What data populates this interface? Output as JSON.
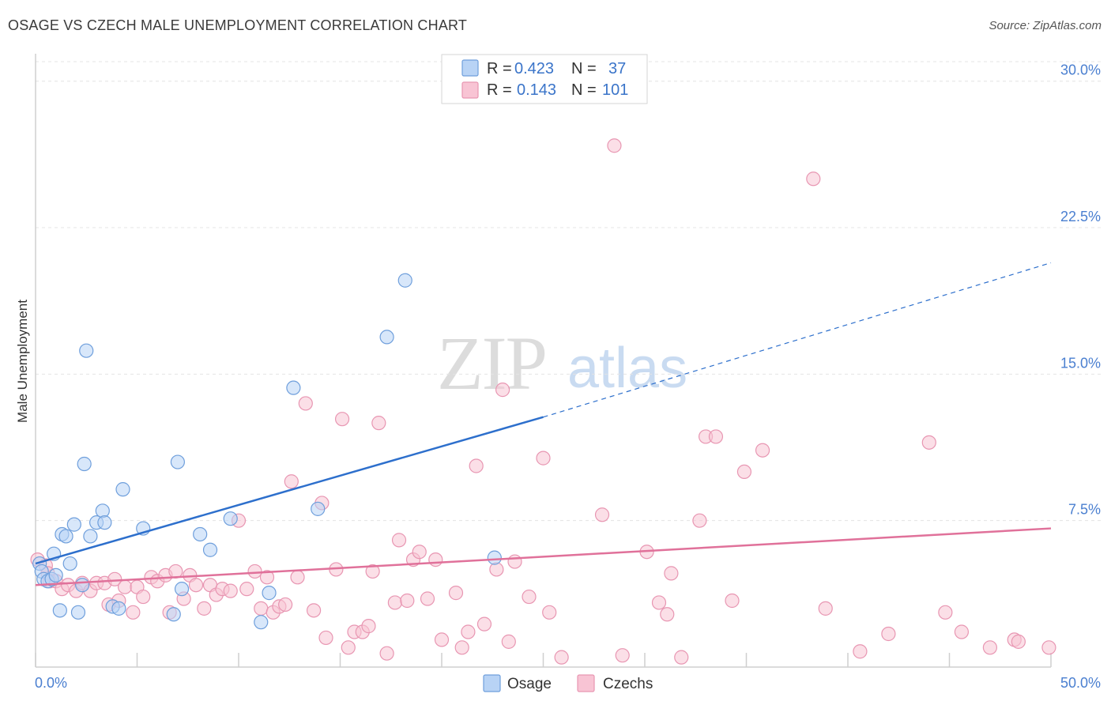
{
  "header": {
    "title": "OSAGE VS CZECH MALE UNEMPLOYMENT CORRELATION CHART",
    "source": "Source: ZipAtlas.com"
  },
  "watermark": {
    "part1": "ZIP",
    "part2": "atlas"
  },
  "legend": {
    "rows": [
      {
        "r_label": "R =",
        "r_value": "0.423",
        "n_label": "N =",
        "n_value": "37"
      },
      {
        "r_label": "R =",
        "r_value": "0.143",
        "n_label": "N =",
        "n_value": "101"
      }
    ]
  },
  "bottom_legend": {
    "osage": "Osage",
    "czechs": "Czechs"
  },
  "chart_data": {
    "type": "scatter",
    "title": "OSAGE VS CZECH MALE UNEMPLOYMENT CORRELATION CHART",
    "xlabel": "",
    "ylabel": "Male Unemployment",
    "xlim": [
      0,
      50
    ],
    "ylim": [
      0,
      31
    ],
    "x_tick_labels": [
      "0.0%",
      "50.0%"
    ],
    "y_ticks": [
      7.5,
      15.0,
      22.5,
      30.0
    ],
    "y_tick_labels": [
      "7.5%",
      "15.0%",
      "22.5%",
      "30.0%"
    ],
    "colors": {
      "osage_fill": "#b8d3f5",
      "osage_stroke": "#6f9fdc",
      "osage_line": "#2d6fcc",
      "czech_fill": "#f8c4d4",
      "czech_stroke": "#e896b2",
      "czech_line": "#e0719a"
    },
    "series": [
      {
        "name": "Osage",
        "R": 0.423,
        "N": 37,
        "trend": {
          "x": [
            0,
            25,
            50
          ],
          "y": [
            5.3,
            12.8,
            20.7
          ],
          "solid_until": 25
        },
        "points": [
          [
            0.2,
            5.3
          ],
          [
            0.3,
            4.9
          ],
          [
            0.4,
            4.5
          ],
          [
            0.6,
            4.4
          ],
          [
            0.8,
            4.5
          ],
          [
            0.9,
            5.8
          ],
          [
            1.0,
            4.7
          ],
          [
            1.2,
            2.9
          ],
          [
            1.3,
            6.8
          ],
          [
            1.5,
            6.7
          ],
          [
            1.7,
            5.3
          ],
          [
            1.9,
            7.3
          ],
          [
            2.1,
            2.8
          ],
          [
            2.3,
            4.2
          ],
          [
            2.4,
            10.4
          ],
          [
            2.5,
            16.2
          ],
          [
            2.7,
            6.7
          ],
          [
            3.0,
            7.4
          ],
          [
            3.3,
            8.0
          ],
          [
            3.4,
            7.4
          ],
          [
            3.8,
            3.1
          ],
          [
            4.1,
            3.0
          ],
          [
            4.3,
            9.1
          ],
          [
            5.3,
            7.1
          ],
          [
            6.8,
            2.7
          ],
          [
            7.0,
            10.5
          ],
          [
            7.2,
            4.0
          ],
          [
            8.1,
            6.8
          ],
          [
            8.6,
            6.0
          ],
          [
            9.6,
            7.6
          ],
          [
            11.1,
            2.3
          ],
          [
            11.5,
            3.8
          ],
          [
            12.7,
            14.3
          ],
          [
            13.9,
            8.1
          ],
          [
            17.3,
            16.9
          ],
          [
            18.2,
            19.8
          ],
          [
            22.6,
            5.6
          ]
        ]
      },
      {
        "name": "Czechs",
        "R": 0.143,
        "N": 101,
        "trend": {
          "x": [
            0,
            50
          ],
          "y": [
            4.2,
            7.1
          ]
        },
        "points": [
          [
            0.1,
            5.5
          ],
          [
            0.5,
            5.2
          ],
          [
            0.6,
            4.8
          ],
          [
            0.7,
            4.4
          ],
          [
            1.0,
            4.4
          ],
          [
            1.3,
            4.0
          ],
          [
            1.6,
            4.2
          ],
          [
            2.0,
            3.9
          ],
          [
            2.3,
            4.3
          ],
          [
            2.7,
            3.9
          ],
          [
            3.0,
            4.3
          ],
          [
            3.4,
            4.3
          ],
          [
            3.6,
            3.2
          ],
          [
            3.9,
            4.5
          ],
          [
            4.1,
            3.4
          ],
          [
            4.4,
            4.1
          ],
          [
            4.8,
            2.8
          ],
          [
            5.0,
            4.1
          ],
          [
            5.3,
            3.6
          ],
          [
            5.7,
            4.6
          ],
          [
            6.0,
            4.4
          ],
          [
            6.4,
            4.7
          ],
          [
            6.6,
            2.8
          ],
          [
            6.9,
            4.9
          ],
          [
            7.3,
            3.5
          ],
          [
            7.6,
            4.7
          ],
          [
            7.9,
            4.2
          ],
          [
            8.3,
            3.0
          ],
          [
            8.6,
            4.2
          ],
          [
            8.9,
            3.7
          ],
          [
            9.2,
            4.0
          ],
          [
            9.6,
            3.9
          ],
          [
            10.0,
            7.5
          ],
          [
            10.4,
            4.0
          ],
          [
            10.8,
            4.9
          ],
          [
            11.1,
            3.0
          ],
          [
            11.4,
            4.6
          ],
          [
            11.7,
            2.8
          ],
          [
            12.0,
            3.1
          ],
          [
            12.3,
            3.2
          ],
          [
            12.6,
            9.5
          ],
          [
            12.9,
            4.6
          ],
          [
            13.3,
            13.5
          ],
          [
            13.7,
            2.9
          ],
          [
            14.1,
            8.4
          ],
          [
            14.3,
            1.5
          ],
          [
            14.8,
            5.0
          ],
          [
            15.1,
            12.7
          ],
          [
            15.4,
            1.0
          ],
          [
            15.7,
            1.8
          ],
          [
            16.1,
            1.8
          ],
          [
            16.4,
            2.1
          ],
          [
            16.6,
            4.9
          ],
          [
            16.9,
            12.5
          ],
          [
            17.3,
            0.7
          ],
          [
            17.7,
            3.3
          ],
          [
            17.9,
            6.5
          ],
          [
            18.3,
            3.4
          ],
          [
            18.6,
            5.5
          ],
          [
            18.9,
            5.9
          ],
          [
            19.3,
            3.5
          ],
          [
            19.7,
            5.5
          ],
          [
            20.0,
            1.4
          ],
          [
            20.7,
            3.8
          ],
          [
            21.0,
            1.0
          ],
          [
            21.3,
            1.8
          ],
          [
            21.7,
            10.3
          ],
          [
            22.1,
            2.2
          ],
          [
            22.7,
            5.0
          ],
          [
            23.0,
            14.2
          ],
          [
            23.3,
            1.3
          ],
          [
            23.6,
            5.4
          ],
          [
            24.3,
            3.6
          ],
          [
            25.0,
            10.7
          ],
          [
            25.3,
            2.8
          ],
          [
            25.9,
            0.5
          ],
          [
            27.9,
            7.8
          ],
          [
            28.5,
            26.7
          ],
          [
            28.9,
            0.6
          ],
          [
            30.1,
            5.9
          ],
          [
            30.7,
            3.3
          ],
          [
            31.1,
            2.7
          ],
          [
            31.3,
            4.8
          ],
          [
            31.8,
            0.5
          ],
          [
            32.7,
            7.5
          ],
          [
            33.0,
            11.8
          ],
          [
            33.5,
            11.8
          ],
          [
            34.3,
            3.4
          ],
          [
            34.9,
            10.0
          ],
          [
            35.8,
            11.1
          ],
          [
            38.3,
            25.0
          ],
          [
            38.9,
            3.0
          ],
          [
            40.6,
            0.8
          ],
          [
            42.0,
            1.7
          ],
          [
            44.0,
            11.5
          ],
          [
            44.8,
            2.8
          ],
          [
            45.6,
            1.8
          ],
          [
            47.0,
            1.0
          ],
          [
            48.2,
            1.4
          ],
          [
            48.4,
            1.3
          ],
          [
            49.9,
            1.0
          ]
        ]
      }
    ]
  }
}
